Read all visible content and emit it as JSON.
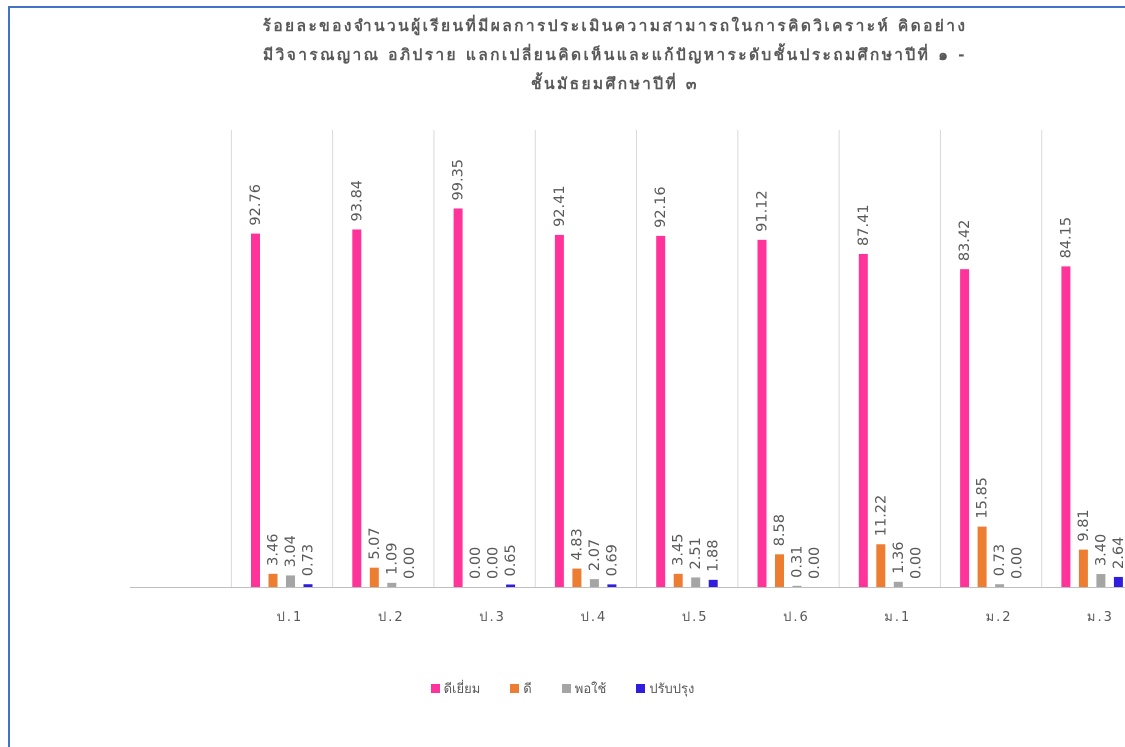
{
  "chart_data": {
    "type": "bar",
    "title_lines": [
      "ร้อยละของจำนวนผู้เรียนที่มีผลการประเมินความสามารถในการคิดวิเคราะห์  คิดอย่าง",
      "มีวิจารณญาณ อภิปราย แลกเปลี่ยนคิดเห็นและแก้ปัญหาระดับชั้นประถมศึกษาปีที่ ๑ -",
      "ชั้นมัธยมศึกษาปีที่ ๓"
    ],
    "categories": [
      "ป.1",
      "ป.2",
      "ป.3",
      "ป.4",
      "ป.5",
      "ป.6",
      "ม.1",
      "ม.2",
      "ม.3"
    ],
    "ylim": [
      0,
      100
    ],
    "grid": "vertical",
    "legend_position": "bottom",
    "series": [
      {
        "name": "ดีเยี่ยม",
        "color": "#ff3399",
        "values": [
          92.76,
          93.84,
          99.35,
          92.41,
          92.16,
          91.12,
          87.41,
          83.42,
          84.15
        ],
        "labels": [
          "92.76",
          "93.84",
          "99.35",
          "92.41",
          "92.16",
          "91.12",
          "87.41",
          "83.42",
          "84.15"
        ]
      },
      {
        "name": "ดี",
        "color": "#ed7d31",
        "values": [
          3.46,
          5.07,
          0.0,
          4.83,
          3.45,
          8.58,
          11.22,
          15.85,
          9.81
        ],
        "labels": [
          "3.46",
          "5.07",
          "0.00",
          "4.83",
          "3.45",
          "8.58",
          "11.22",
          "15.85",
          "9.81"
        ]
      },
      {
        "name": "พอใช้",
        "color": "#a5a5a5",
        "values": [
          3.04,
          1.09,
          0.0,
          2.07,
          2.51,
          0.31,
          1.36,
          0.73,
          3.4
        ],
        "labels": [
          "3.04",
          "1.09",
          "0.00",
          "2.07",
          "2.51",
          "0.31",
          "1.36",
          "0.73",
          "3.40"
        ]
      },
      {
        "name": "ปรับปรุง",
        "color": "#2f1ee0",
        "values": [
          0.73,
          0.0,
          0.65,
          0.69,
          1.88,
          0.0,
          0.0,
          0.0,
          2.64
        ],
        "labels": [
          "0.73",
          "0.00",
          "0.65",
          "0.69",
          "1.88",
          "0.00",
          "0.00",
          "0.00",
          "2.64"
        ]
      }
    ]
  }
}
